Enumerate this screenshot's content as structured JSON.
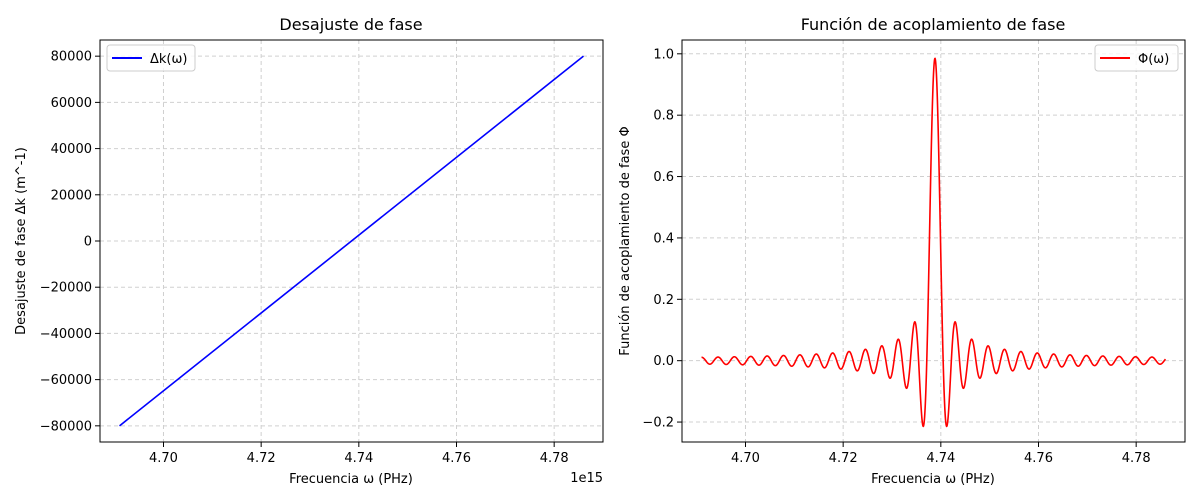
{
  "chart_data": [
    {
      "type": "line",
      "title": "Desajuste de fase",
      "xlabel": "Frecuencia ω (PHz)",
      "ylabel": "Desajuste de fase Δk (m^-1)",
      "x_offset_text": "1e15",
      "xlim": [
        4.687,
        4.79
      ],
      "ylim": [
        -87000,
        87000
      ],
      "xticks": [
        4.7,
        4.72,
        4.74,
        4.76,
        4.78
      ],
      "xtick_labels": [
        "4.70",
        "4.72",
        "4.74",
        "4.76",
        "4.78"
      ],
      "yticks": [
        -80000,
        -60000,
        -40000,
        -20000,
        0,
        20000,
        40000,
        60000,
        80000
      ],
      "ytick_labels": [
        "−80000",
        "−60000",
        "−40000",
        "−20000",
        "0",
        "20000",
        "40000",
        "60000",
        "80000"
      ],
      "grid": true,
      "legend_position": "top-left",
      "series": [
        {
          "name": "Δk(ω)",
          "color": "#0000ff",
          "x": [
            4.691,
            4.786
          ],
          "y": [
            -80000,
            80000
          ]
        }
      ]
    },
    {
      "type": "line",
      "title": "Función de acoplamiento de fase",
      "xlabel": "Frecuencia ω (PHz)",
      "ylabel": "Función de acoplamiento de fase Φ",
      "xlim": [
        4.687,
        4.79
      ],
      "ylim": [
        -0.265,
        1.045
      ],
      "xticks": [
        4.7,
        4.72,
        4.74,
        4.76,
        4.78
      ],
      "xtick_labels": [
        "4.70",
        "4.72",
        "4.74",
        "4.76",
        "4.78"
      ],
      "yticks": [
        -0.2,
        0.0,
        0.2,
        0.4,
        0.6,
        0.8,
        1.0
      ],
      "ytick_labels": [
        "−0.2",
        "0.0",
        "0.2",
        "0.4",
        "0.6",
        "0.8",
        "1.0"
      ],
      "grid": true,
      "legend_position": "top-right",
      "series": [
        {
          "name": "Φ(ω)",
          "color": "#ff0000",
          "function": "sinc(Δk·L/2)·cos(Δk·L/2)",
          "x_range": [
            4.691,
            4.786
          ],
          "x_center": 4.7388,
          "peak": 0.985
        }
      ]
    }
  ]
}
